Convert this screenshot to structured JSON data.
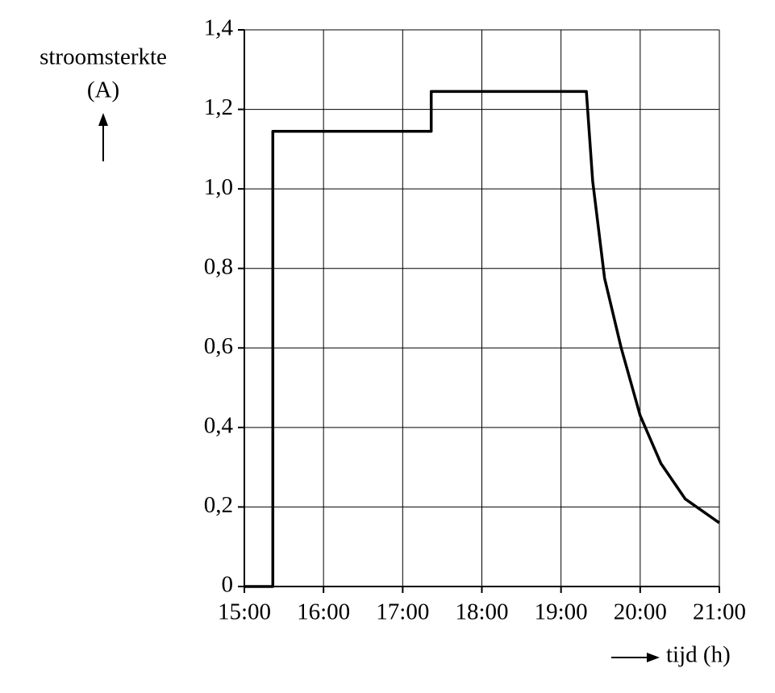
{
  "chart_data": {
    "type": "line",
    "y_label": [
      "stroomsterkte",
      "(A)"
    ],
    "x_label": "tijd (h)",
    "x": [
      15,
      15.36,
      15.36,
      17.36,
      17.36,
      19.32,
      19.4,
      19.55,
      19.76,
      20.0,
      20.26,
      20.57,
      21.0
    ],
    "values": [
      0,
      0,
      1.145,
      1.145,
      1.245,
      1.245,
      1.02,
      0.775,
      0.6,
      0.43,
      0.31,
      0.22,
      0.16
    ],
    "color": "#000000",
    "xlim": [
      15,
      21
    ],
    "xticks": [
      {
        "value": 15,
        "label": "15:00"
      },
      {
        "value": 16,
        "label": "16:00"
      },
      {
        "value": 17,
        "label": "17:00"
      },
      {
        "value": 18,
        "label": "18:00"
      },
      {
        "value": 19,
        "label": "19:00"
      },
      {
        "value": 20,
        "label": "20:00"
      },
      {
        "value": 21,
        "label": "21:00"
      }
    ],
    "ylim": [
      0,
      1.4
    ],
    "yticks": [
      0,
      {
        "value": 0.2,
        "label": "0,2"
      },
      {
        "value": 0.4,
        "label": "0,4"
      },
      {
        "value": 0.6,
        "label": "0,6"
      },
      {
        "value": 0.8,
        "label": "0,8"
      },
      {
        "value": 1.0,
        "label": "1,0"
      },
      {
        "value": 1.2,
        "label": "1,2"
      },
      {
        "value": 1.4,
        "label": "1,4"
      }
    ],
    "grid": true
  }
}
